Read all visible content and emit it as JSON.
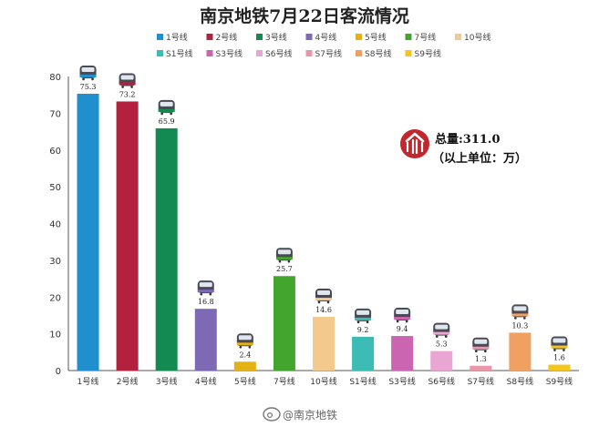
{
  "chart_data": {
    "type": "bar",
    "title": "南京地铁7月22日客流情况",
    "categories": [
      "1号线",
      "2号线",
      "3号线",
      "4号线",
      "5号线",
      "7号线",
      "10号线",
      "S1号线",
      "S3号线",
      "S6号线",
      "S7号线",
      "S8号线",
      "S9号线"
    ],
    "values": [
      75.3,
      73.2,
      65.9,
      16.8,
      2.4,
      25.7,
      14.6,
      9.2,
      9.4,
      5.3,
      1.3,
      10.3,
      1.6
    ],
    "value_labels": [
      "75.3",
      "73.2",
      "65.9",
      "16.8",
      "2.4",
      "25.7",
      "14.6",
      "9.2",
      "9.4",
      "5.3",
      "1.3",
      "10.3",
      "1.6"
    ],
    "colors": [
      "#1f8fcd",
      "#b2213d",
      "#138a52",
      "#7e69b5",
      "#e3b113",
      "#44a52e",
      "#f3c98d",
      "#3dbcb5",
      "#cb64b1",
      "#e9a6d3",
      "#e995aa",
      "#f0a061",
      "#f3c51d"
    ],
    "ylim": [
      0,
      80
    ],
    "yticks": [
      "0",
      "10",
      "20",
      "30",
      "40",
      "50",
      "60",
      "70",
      "80"
    ],
    "grid": false,
    "legend_position": "top",
    "xlabel": "",
    "ylabel": ""
  },
  "annotation": {
    "total_text": "总量:311.0",
    "unit_text": "（以上单位：万）",
    "logo_icon": "nanjing-metro-logo-icon"
  },
  "watermark": {
    "text": "@南京地铁",
    "icon": "weibo-icon"
  }
}
